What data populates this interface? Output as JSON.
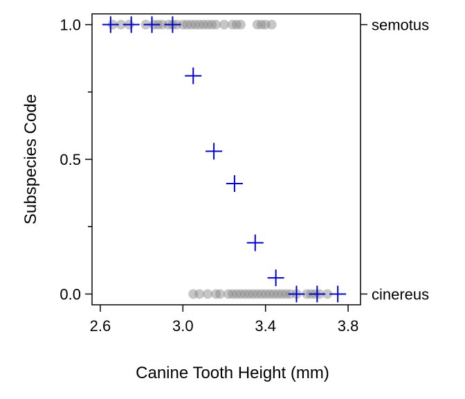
{
  "chart_data": {
    "type": "scatter",
    "xlabel": "Canine Tooth Height (mm)",
    "ylabel": "Subspecies Code",
    "xlim": [
      2.56,
      3.86
    ],
    "ylim": [
      -0.04,
      1.04
    ],
    "x_ticks": [
      "2.6",
      "3.0",
      "3.4",
      "3.8"
    ],
    "x_tick_values": [
      2.6,
      3.0,
      3.4,
      3.8
    ],
    "y_ticks": [
      "0.0",
      "0.5",
      "1.0"
    ],
    "y_tick_values": [
      0.0,
      0.5,
      1.0
    ],
    "right_axis_labels": [
      {
        "value": 1.0,
        "label": "semotus"
      },
      {
        "value": 0.0,
        "label": "cinereus"
      }
    ],
    "grid": false,
    "series": [
      {
        "marker": "circle",
        "color": "#808080",
        "points": [
          {
            "x": 2.66,
            "y": 1
          },
          {
            "x": 2.7,
            "y": 1
          },
          {
            "x": 2.74,
            "y": 1
          },
          {
            "x": 2.82,
            "y": 1
          },
          {
            "x": 2.86,
            "y": 1
          },
          {
            "x": 2.88,
            "y": 1
          },
          {
            "x": 2.9,
            "y": 1
          },
          {
            "x": 2.93,
            "y": 1
          },
          {
            "x": 2.95,
            "y": 1
          },
          {
            "x": 2.97,
            "y": 1
          },
          {
            "x": 3.0,
            "y": 1
          },
          {
            "x": 3.02,
            "y": 1
          },
          {
            "x": 3.04,
            "y": 1
          },
          {
            "x": 3.06,
            "y": 1
          },
          {
            "x": 3.08,
            "y": 1
          },
          {
            "x": 3.1,
            "y": 1
          },
          {
            "x": 3.12,
            "y": 1
          },
          {
            "x": 3.14,
            "y": 1
          },
          {
            "x": 3.16,
            "y": 1
          },
          {
            "x": 3.2,
            "y": 1
          },
          {
            "x": 3.24,
            "y": 1
          },
          {
            "x": 3.26,
            "y": 1
          },
          {
            "x": 3.28,
            "y": 1
          },
          {
            "x": 3.36,
            "y": 1
          },
          {
            "x": 3.38,
            "y": 1
          },
          {
            "x": 3.4,
            "y": 1
          },
          {
            "x": 3.43,
            "y": 1
          },
          {
            "x": 3.05,
            "y": 0
          },
          {
            "x": 3.08,
            "y": 0
          },
          {
            "x": 3.12,
            "y": 0
          },
          {
            "x": 3.16,
            "y": 0
          },
          {
            "x": 3.18,
            "y": 0
          },
          {
            "x": 3.22,
            "y": 0
          },
          {
            "x": 3.24,
            "y": 0
          },
          {
            "x": 3.26,
            "y": 0
          },
          {
            "x": 3.28,
            "y": 0
          },
          {
            "x": 3.3,
            "y": 0
          },
          {
            "x": 3.32,
            "y": 0
          },
          {
            "x": 3.34,
            "y": 0
          },
          {
            "x": 3.36,
            "y": 0
          },
          {
            "x": 3.38,
            "y": 0
          },
          {
            "x": 3.4,
            "y": 0
          },
          {
            "x": 3.42,
            "y": 0
          },
          {
            "x": 3.44,
            "y": 0
          },
          {
            "x": 3.46,
            "y": 0
          },
          {
            "x": 3.48,
            "y": 0
          },
          {
            "x": 3.5,
            "y": 0
          },
          {
            "x": 3.52,
            "y": 0
          },
          {
            "x": 3.55,
            "y": 0
          },
          {
            "x": 3.6,
            "y": 0
          },
          {
            "x": 3.62,
            "y": 0
          },
          {
            "x": 3.64,
            "y": 0
          },
          {
            "x": 3.66,
            "y": 0
          },
          {
            "x": 3.7,
            "y": 0
          }
        ]
      },
      {
        "marker": "plus",
        "color": "#0000cc",
        "points": [
          {
            "x": 2.65,
            "y": 1.0
          },
          {
            "x": 2.75,
            "y": 1.0
          },
          {
            "x": 2.85,
            "y": 1.0
          },
          {
            "x": 2.95,
            "y": 1.0
          },
          {
            "x": 3.05,
            "y": 0.81
          },
          {
            "x": 3.15,
            "y": 0.53
          },
          {
            "x": 3.25,
            "y": 0.41
          },
          {
            "x": 3.35,
            "y": 0.19
          },
          {
            "x": 3.45,
            "y": 0.06
          },
          {
            "x": 3.55,
            "y": 0.0
          },
          {
            "x": 3.65,
            "y": 0.0
          },
          {
            "x": 3.75,
            "y": 0.0
          }
        ]
      }
    ]
  }
}
